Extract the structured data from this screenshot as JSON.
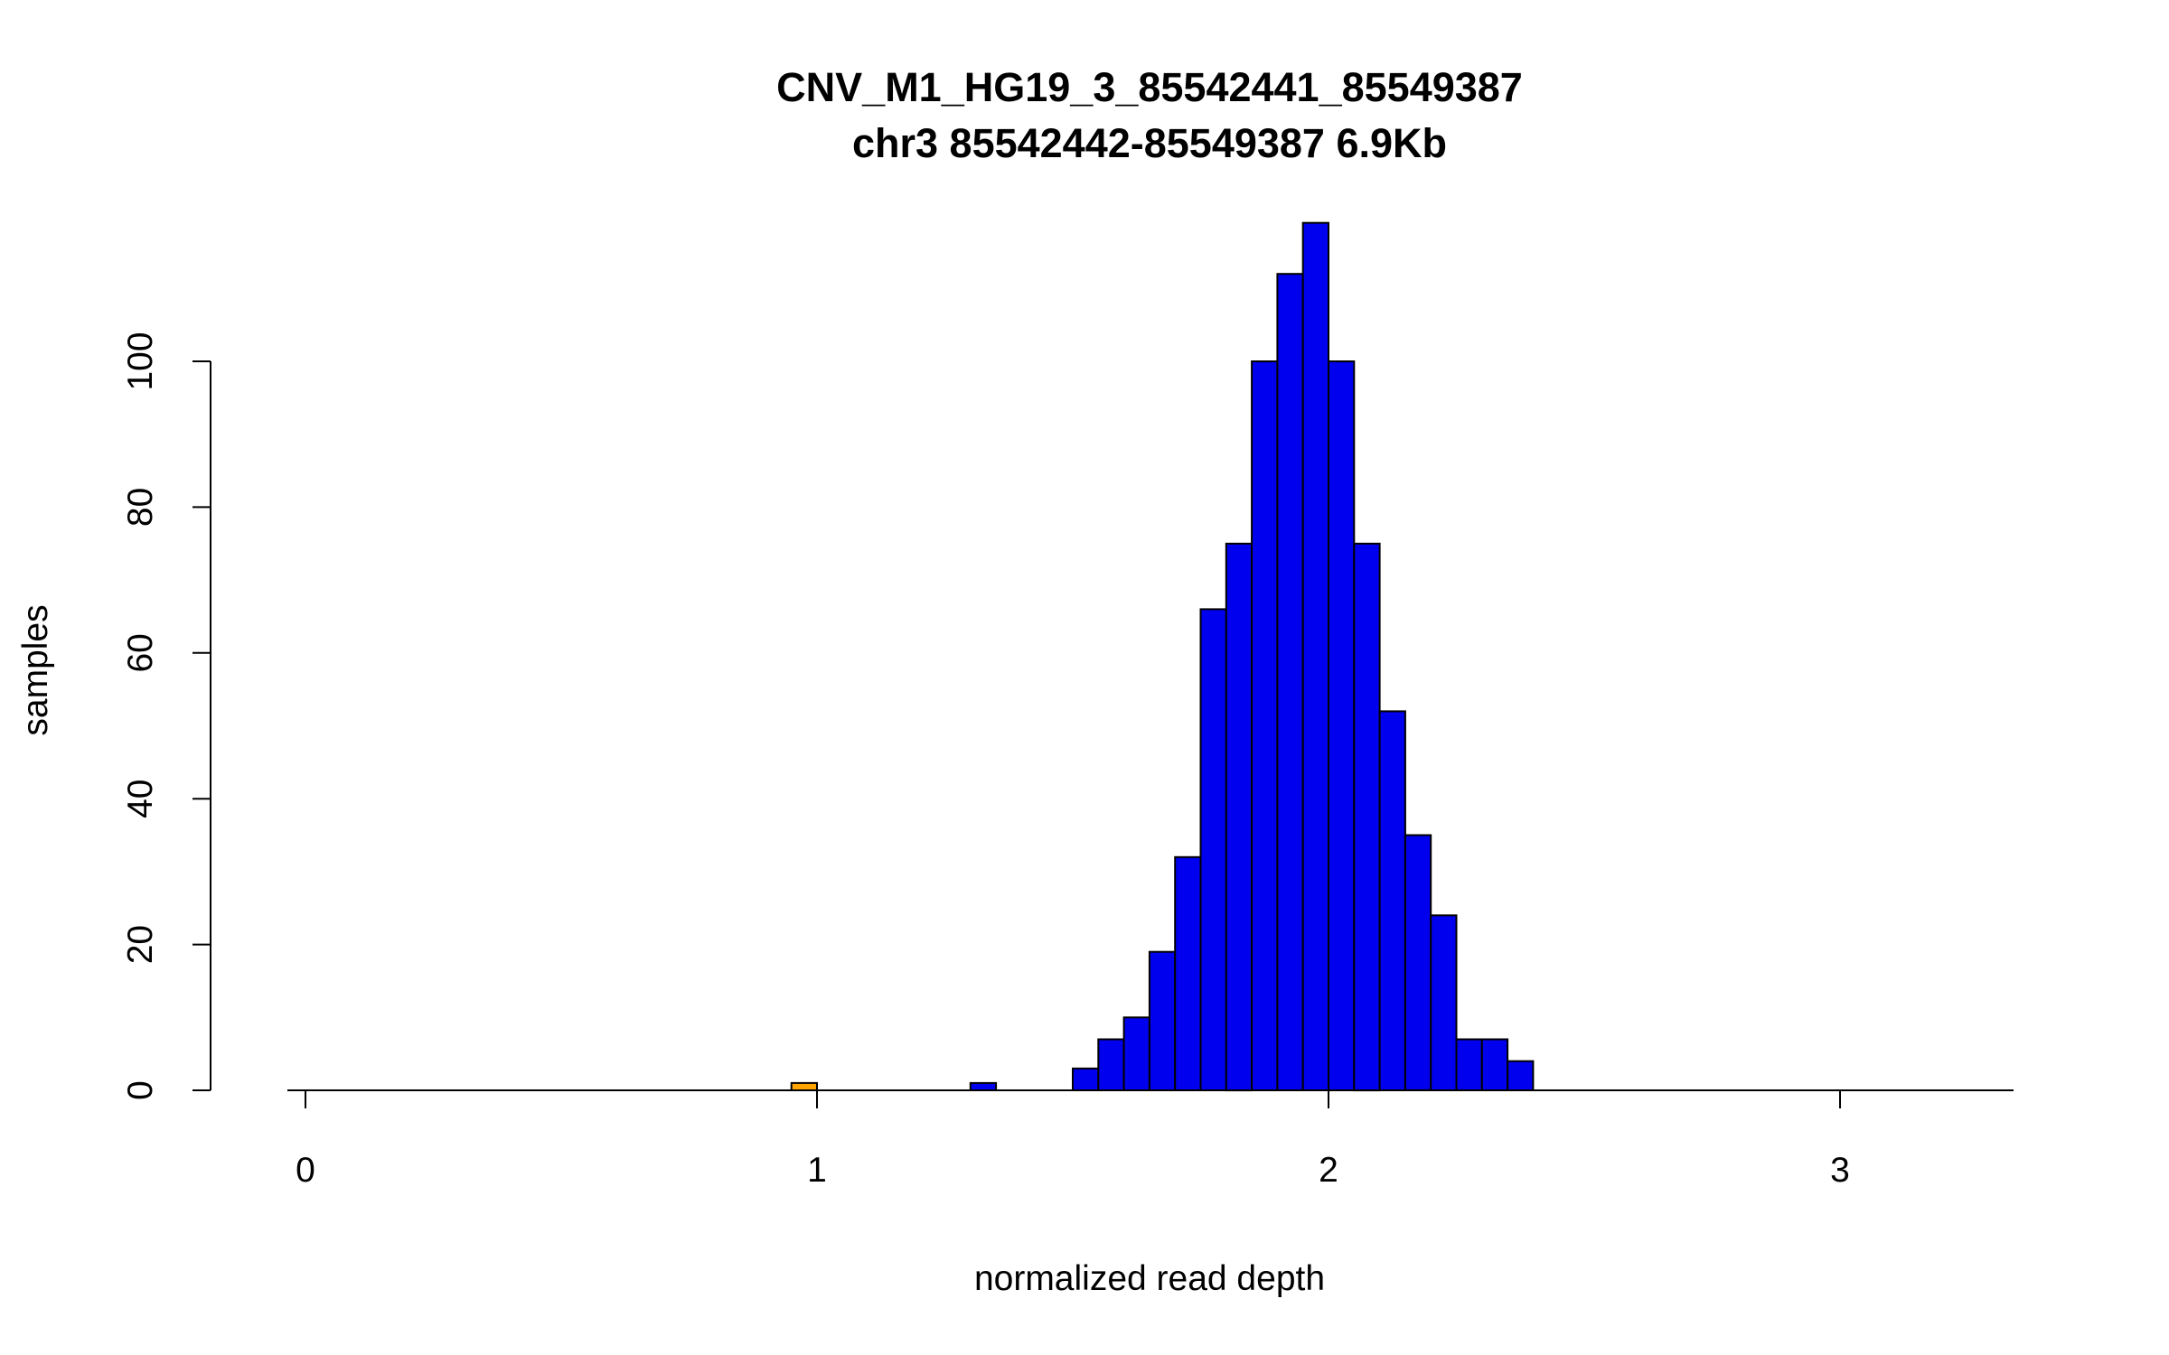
{
  "title": {
    "line1": "CNV_M1_HG19_3_85542441_85549387",
    "line2": "chr3 85542442-85549387 6.9Kb"
  },
  "chart_data": {
    "type": "bar",
    "subtype": "histogram",
    "title": "CNV_M1_HG19_3_85542441_85549387",
    "subtitle": "chr3 85542442-85549387 6.9Kb",
    "xlabel": "normalized read depth",
    "ylabel": "samples",
    "xlim": [
      -0.04,
      3.34
    ],
    "ylim": [
      0,
      119
    ],
    "x_ticks": [
      0,
      1,
      2,
      3
    ],
    "y_ticks": [
      0,
      20,
      40,
      60,
      80,
      100
    ],
    "bin_width": 0.05,
    "bar_fill": "#0000EE",
    "bar_stroke": "#000000",
    "highlight_fill": "#FFA500",
    "grid": false,
    "legend": "none",
    "bins": [
      {
        "x0": 0.95,
        "count": 1,
        "color": "#FFA500"
      },
      {
        "x0": 1.3,
        "count": 1
      },
      {
        "x0": 1.5,
        "count": 3
      },
      {
        "x0": 1.55,
        "count": 7
      },
      {
        "x0": 1.6,
        "count": 10
      },
      {
        "x0": 1.65,
        "count": 19
      },
      {
        "x0": 1.7,
        "count": 32
      },
      {
        "x0": 1.75,
        "count": 66
      },
      {
        "x0": 1.8,
        "count": 75
      },
      {
        "x0": 1.85,
        "count": 100
      },
      {
        "x0": 1.9,
        "count": 112
      },
      {
        "x0": 1.95,
        "count": 119
      },
      {
        "x0": 2.0,
        "count": 100
      },
      {
        "x0": 2.05,
        "count": 75
      },
      {
        "x0": 2.1,
        "count": 52
      },
      {
        "x0": 2.15,
        "count": 35
      },
      {
        "x0": 2.2,
        "count": 24
      },
      {
        "x0": 2.25,
        "count": 7
      },
      {
        "x0": 2.3,
        "count": 7
      },
      {
        "x0": 2.35,
        "count": 4
      }
    ]
  }
}
